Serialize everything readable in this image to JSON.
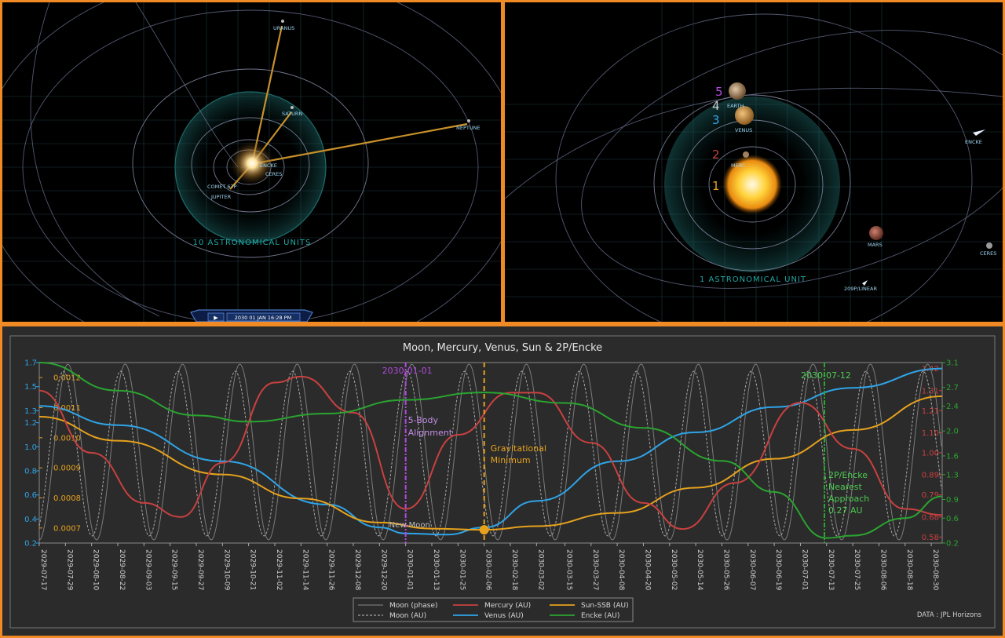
{
  "left_view": {
    "planet_labels": [
      "URANUS",
      "SATURN",
      "NEPTUNE",
      "ENCKE",
      "CERES",
      "COMET 67P",
      "JUPITER"
    ],
    "scale_label": "10 ASTRONOMICAL UNITS",
    "timebar": {
      "play_icon": "play-icon",
      "datetime": "2030 01 JAN  16:28 PM"
    }
  },
  "right_view": {
    "planet_labels": [
      "EARTH",
      "VENUS",
      "MERC",
      "ENCKE",
      "MARS",
      "CERES",
      "209P/LINEAR"
    ],
    "alignment_numbers": [
      {
        "n": "5",
        "color": "#b24adf"
      },
      {
        "n": "4",
        "color": "#cfcfcf"
      },
      {
        "n": "3",
        "color": "#2fa4e7"
      },
      {
        "n": "2",
        "color": "#c8413f"
      },
      {
        "n": "1",
        "color": "#e6a21d"
      }
    ],
    "scale_label": "1 ASTRONOMICAL UNIT"
  },
  "chart_data": {
    "type": "line",
    "title": "Moon, Mercury, Venus, Sun & 2P/Encke",
    "x_range": [
      "2029-07-17",
      "2030-09-04"
    ],
    "x_tick_labels": [
      "2029-07-17",
      "2029-07-29",
      "2029-08-10",
      "2029-08-22",
      "2029-09-03",
      "2029-09-15",
      "2029-09-27",
      "2029-10-09",
      "2029-10-21",
      "2029-11-02",
      "2029-11-14",
      "2029-11-26",
      "2029-12-08",
      "2029-12-20",
      "2030-01-01",
      "2030-01-13",
      "2030-01-25",
      "2030-02-06",
      "2030-02-18",
      "2030-03-02",
      "2030-03-15",
      "2030-03-27",
      "2030-04-08",
      "2030-04-20",
      "2030-05-02",
      "2030-05-14",
      "2030-05-26",
      "2030-06-07",
      "2030-06-19",
      "2030-07-01",
      "2030-07-13",
      "2030-07-25",
      "2030-08-06",
      "2030-08-18",
      "2030-08-30"
    ],
    "axes": {
      "left_outer": {
        "range": [
          0.2,
          1.7
        ],
        "ticks": [
          "1.7",
          "1.5",
          "1.3",
          "1.2",
          "1.0",
          "0.8",
          "0.6",
          "0.4",
          "0.2"
        ],
        "color": "#2fa4e7"
      },
      "left_inner": {
        "range": [
          0.00065,
          0.00125
        ],
        "ticks": [
          "0.0012",
          "0.0011",
          "0.0010",
          "0.0009",
          "0.0008",
          "0.0007"
        ],
        "color": "#e6a21d"
      },
      "right_inner": {
        "range": [
          0.55,
          1.45
        ],
        "ticks": [
          "1.42",
          "1.31",
          "1.21",
          "1.10",
          "1.00",
          "0.89",
          "0.79",
          "0.68",
          "0.58"
        ],
        "color": "#c8413f"
      },
      "right_outer": {
        "range": [
          0.2,
          3.1
        ],
        "ticks": [
          "3.1",
          "2.7",
          "2.4",
          "2.0",
          "1.6",
          "1.3",
          "0.9",
          "0.6",
          "0.2"
        ],
        "color": "#2aa530"
      }
    },
    "series": [
      {
        "name": "Venus (AU)",
        "color": "#2fa4e7",
        "axis": "left_outer",
        "points": [
          [
            "2029-07-17",
            1.34
          ],
          [
            "2029-08-22",
            1.18
          ],
          [
            "2029-10-09",
            0.88
          ],
          [
            "2029-11-26",
            0.52
          ],
          [
            "2029-12-20",
            0.33
          ],
          [
            "2030-01-01",
            0.28
          ],
          [
            "2030-01-20",
            0.27
          ],
          [
            "2030-02-06",
            0.33
          ],
          [
            "2030-03-02",
            0.55
          ],
          [
            "2030-04-08",
            0.88
          ],
          [
            "2030-05-14",
            1.12
          ],
          [
            "2030-06-19",
            1.33
          ],
          [
            "2030-07-25",
            1.49
          ],
          [
            "2030-09-04",
            1.65
          ]
        ]
      },
      {
        "name": "Sun-SSB (AU)",
        "color": "#e6a21d",
        "axis": "left_outer",
        "points": [
          [
            "2029-07-17",
            1.25
          ],
          [
            "2029-08-22",
            1.05
          ],
          [
            "2029-10-09",
            0.77
          ],
          [
            "2029-11-14",
            0.57
          ],
          [
            "2029-12-20",
            0.37
          ],
          [
            "2030-01-13",
            0.32
          ],
          [
            "2030-02-06",
            0.31
          ],
          [
            "2030-03-02",
            0.34
          ],
          [
            "2030-04-08",
            0.45
          ],
          [
            "2030-05-14",
            0.66
          ],
          [
            "2030-06-19",
            0.9
          ],
          [
            "2030-07-25",
            1.14
          ],
          [
            "2030-09-04",
            1.42
          ]
        ]
      },
      {
        "name": "Mercury (AU)",
        "color": "#c8413f",
        "axis": "right_inner",
        "points": [
          [
            "2029-07-17",
            1.31
          ],
          [
            "2029-08-10",
            1.0
          ],
          [
            "2029-09-03",
            0.75
          ],
          [
            "2029-09-20",
            0.68
          ],
          [
            "2029-10-09",
            0.95
          ],
          [
            "2029-11-02",
            1.35
          ],
          [
            "2029-11-14",
            1.38
          ],
          [
            "2029-12-08",
            1.2
          ],
          [
            "2030-01-01",
            0.72
          ],
          [
            "2030-01-25",
            1.09
          ],
          [
            "2030-02-18",
            1.3
          ],
          [
            "2030-03-02",
            1.3
          ],
          [
            "2030-03-27",
            1.05
          ],
          [
            "2030-04-20",
            0.75
          ],
          [
            "2030-05-08",
            0.62
          ],
          [
            "2030-06-01",
            0.85
          ],
          [
            "2030-07-01",
            1.25
          ],
          [
            "2030-07-25",
            1.02
          ],
          [
            "2030-08-18",
            0.72
          ],
          [
            "2030-09-04",
            0.69
          ]
        ]
      },
      {
        "name": "Encke (AU)",
        "color": "#2aa530",
        "axis": "right_outer",
        "points": [
          [
            "2029-07-17",
            3.1
          ],
          [
            "2029-08-22",
            2.65
          ],
          [
            "2029-09-27",
            2.25
          ],
          [
            "2029-10-21",
            2.15
          ],
          [
            "2029-11-26",
            2.28
          ],
          [
            "2030-01-01",
            2.5
          ],
          [
            "2030-02-06",
            2.62
          ],
          [
            "2030-03-15",
            2.45
          ],
          [
            "2030-04-20",
            2.05
          ],
          [
            "2030-05-26",
            1.52
          ],
          [
            "2030-06-19",
            1.02
          ],
          [
            "2030-07-13",
            0.28
          ],
          [
            "2030-07-25",
            0.32
          ],
          [
            "2030-08-18",
            0.6
          ],
          [
            "2030-09-04",
            0.95
          ]
        ]
      },
      {
        "name": "Moon (phase)",
        "color": "#8a8a8a",
        "axis": "left_outer",
        "style": "solid"
      },
      {
        "name": "Moon (AU)",
        "color": "#bdbdbd",
        "axis": "left_outer",
        "style": "dashed"
      }
    ],
    "annotations": [
      {
        "x": "2030-01-01",
        "label": "2030-01-01",
        "color": "#b24adf",
        "style": "dashdot"
      },
      {
        "x": "2030-01-01",
        "label": "5-Body Alignment",
        "color": "#c38ee6"
      },
      {
        "x": "2030-01-01",
        "label": "New Moon",
        "color": "#bdbdbd"
      },
      {
        "x": "2030-02-06",
        "label": "Gravitational Minimum",
        "color": "#e6a21d",
        "style": "dashed",
        "marker_y": 0.31
      },
      {
        "x": "2030-07-12",
        "label": "2030-07-12",
        "color": "#2aa530",
        "style": "dashdot"
      },
      {
        "x": "2030-07-12",
        "label": "2P/Encke Nearest Approach 0.27 AU",
        "color": "#4ccc52"
      }
    ],
    "legend": {
      "placement": "bottom-center",
      "entries": [
        "Moon (phase)",
        "Moon (AU)",
        "Mercury (AU)",
        "Venus (AU)",
        "Sun-SSB (AU)",
        "Encke (AU)"
      ]
    },
    "source_note": "DATA : JPL Horizons",
    "grid": false
  }
}
